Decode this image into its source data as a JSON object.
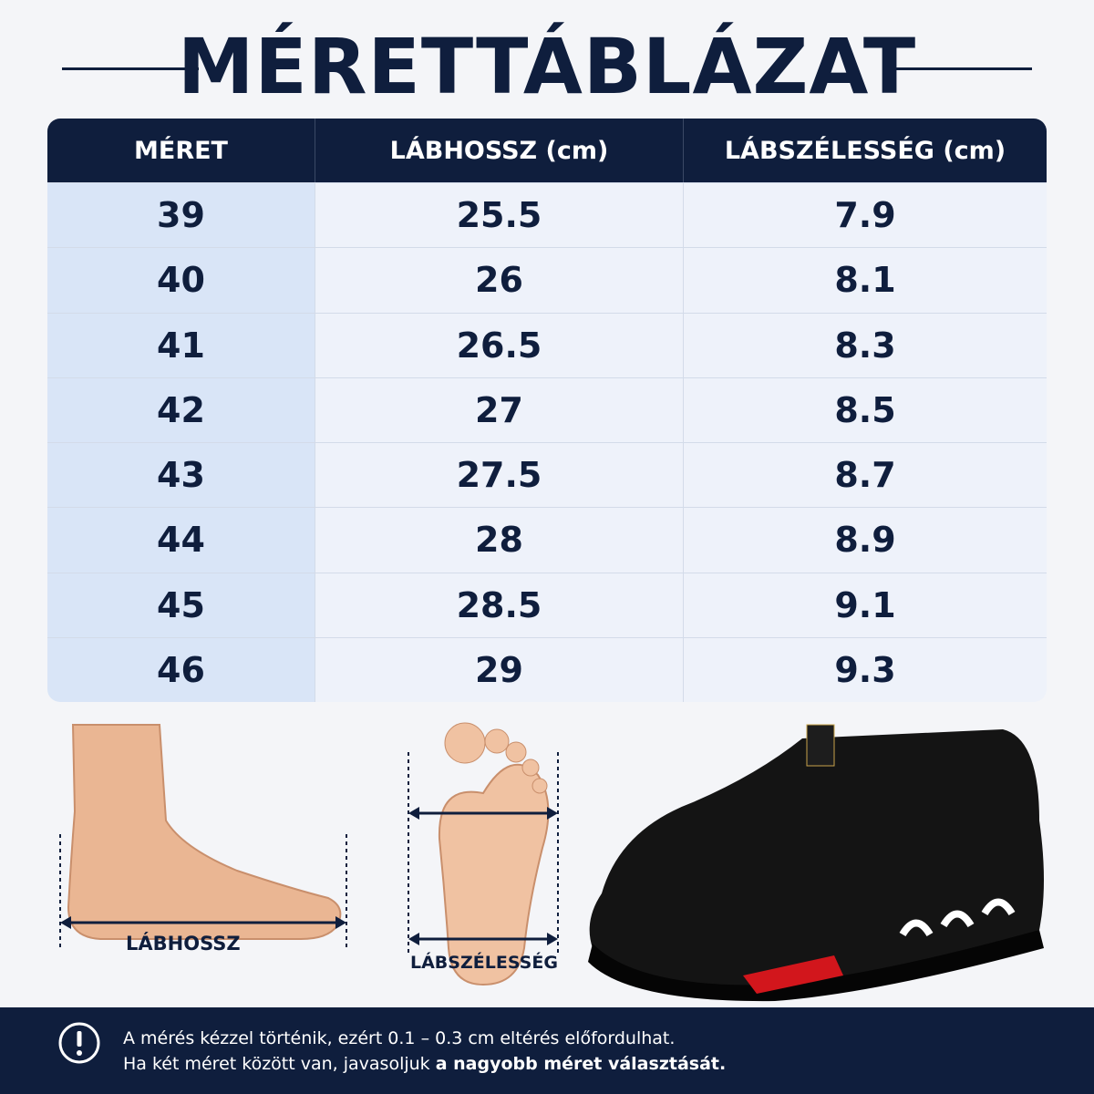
{
  "title": "MÉRETTÁBLÁZAT",
  "table": {
    "header": [
      "MÉRET",
      "LÁBHOSSZ (cm)",
      "LÁBSZÉLESSÉG (cm)"
    ],
    "rows": [
      [
        39,
        25.5,
        7.9
      ],
      [
        40,
        26,
        8.1
      ],
      [
        41,
        26.5,
        8.3
      ],
      [
        42,
        27,
        8.5
      ],
      [
        43,
        27.5,
        8.7
      ],
      [
        44,
        28,
        8.9
      ],
      [
        45,
        28.5,
        9.1
      ],
      [
        46,
        29,
        9.3
      ]
    ]
  },
  "illustrations": {
    "foot_length_label": "LÁBHOSSZ",
    "foot_width_label": "LÁBSZÉLESSÉG"
  },
  "note": {
    "line1": "A mérés kézzel történik, ezért 0.1 – 0.3 cm eltérés előfordulhat.",
    "line2": "Ha két méret között van, javasoljuk",
    "line2_bold": "a nagyobb méret választását."
  }
}
